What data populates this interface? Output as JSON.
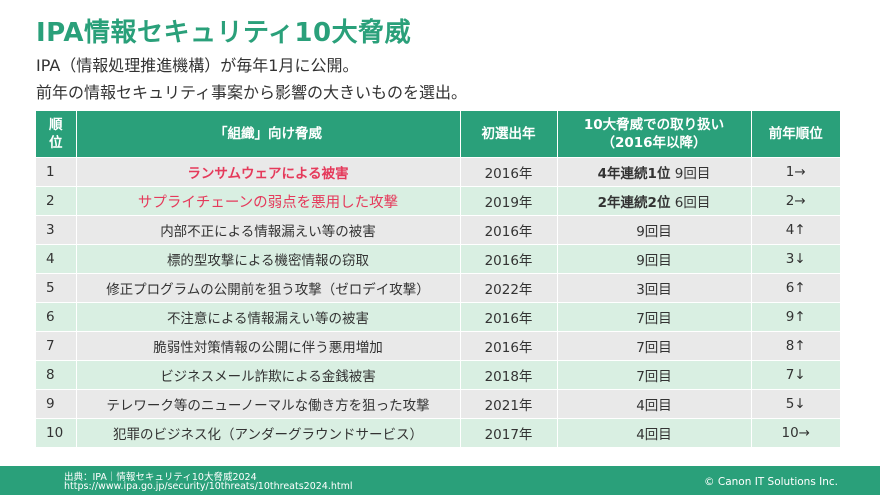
{
  "title": "IPA情報セキュリティ10大脅威",
  "intro": {
    "line1": "IPA（情報処理推進機構）が毎年1月に公開。",
    "line2": "前年の情報セキュリティ事案から影響の大きいものを選出。"
  },
  "table": {
    "headers": {
      "rank_line1": "順",
      "rank_line2": "位",
      "threat": "「組織」向け脅威",
      "first_year": "初選出年",
      "handling_line1": "10大脅威での取り扱い",
      "handling_line2": "（2016年以降）",
      "prev_rank": "前年順位"
    },
    "rows": [
      {
        "rank": "1",
        "threat": "ランサムウェアによる被害",
        "year": "2016年",
        "handling_bold": "4年連続1位",
        "handling": " 9回目",
        "prev": "1→"
      },
      {
        "rank": "2",
        "threat": "サプライチェーンの弱点を悪用した攻撃",
        "year": "2019年",
        "handling_bold": "2年連続2位",
        "handling": " 6回目",
        "prev": "2→"
      },
      {
        "rank": "3",
        "threat": "内部不正による情報漏えい等の被害",
        "year": "2016年",
        "handling_bold": "",
        "handling": "9回目",
        "prev": "4↑"
      },
      {
        "rank": "4",
        "threat": "標的型攻撃による機密情報の窃取",
        "year": "2016年",
        "handling_bold": "",
        "handling": "9回目",
        "prev": "3↓"
      },
      {
        "rank": "5",
        "threat": "修正プログラムの公開前を狙う攻撃（ゼロデイ攻撃）",
        "year": "2022年",
        "handling_bold": "",
        "handling": "3回目",
        "prev": "6↑"
      },
      {
        "rank": "6",
        "threat": "不注意による情報漏えい等の被害",
        "year": "2016年",
        "handling_bold": "",
        "handling": "7回目",
        "prev": "9↑"
      },
      {
        "rank": "7",
        "threat": "脆弱性対策情報の公開に伴う悪用増加",
        "year": "2016年",
        "handling_bold": "",
        "handling": "7回目",
        "prev": "8↑"
      },
      {
        "rank": "8",
        "threat": "ビジネスメール詐欺による金銭被害",
        "year": "2018年",
        "handling_bold": "",
        "handling": "7回目",
        "prev": "7↓"
      },
      {
        "rank": "9",
        "threat": "テレワーク等のニューノーマルな働き方を狙った攻撃",
        "year": "2021年",
        "handling_bold": "",
        "handling": "4回目",
        "prev": "5↓"
      },
      {
        "rank": "10",
        "threat": "犯罪のビジネス化（アンダーグラウンドサービス）",
        "year": "2017年",
        "handling_bold": "",
        "handling": "4回目",
        "prev": "10→"
      }
    ]
  },
  "footer": {
    "source": "出典：IPA｜情報セキュリティ10大脅威2024",
    "url": "https://www.ipa.go.jp/security/10threats/10threats2024.html",
    "copyright": "© Canon IT Solutions Inc."
  },
  "colors": {
    "accent": "#2aa07a",
    "highlight_red": "#e53a5b",
    "row_gray": "#e9e9e9",
    "row_green": "#d9efe2"
  }
}
